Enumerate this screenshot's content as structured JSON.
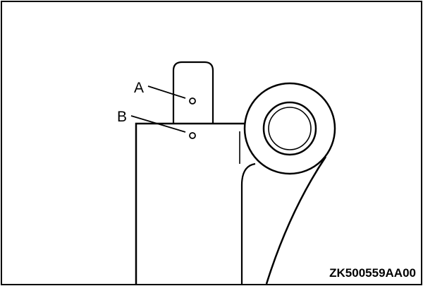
{
  "labels": {
    "point_a": "A",
    "point_b": "B"
  },
  "figure_code": "ZK500559AA00",
  "colors": {
    "line": "#000000",
    "background": "#ffffff"
  }
}
